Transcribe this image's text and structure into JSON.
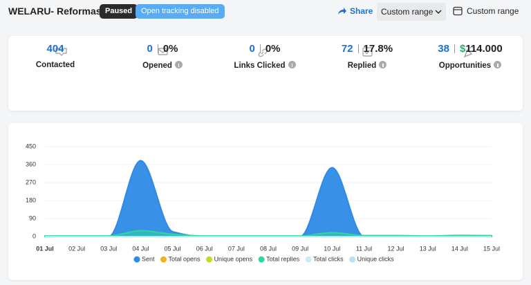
{
  "header": {
    "title": "WELARU- Reformas",
    "status": "Paused",
    "badge": "Open tracking disabled",
    "share": "Share",
    "range_select": "Custom range",
    "range_button": "Custom range"
  },
  "stats": [
    {
      "value": 404,
      "label": "Contacted"
    },
    {
      "value": 0,
      "percent": "0%",
      "label": "Opened"
    },
    {
      "value": 0,
      "percent": "0%",
      "label": "Links Clicked"
    },
    {
      "value": 72,
      "percent": "17.8%",
      "label": "Replied"
    },
    {
      "value": 38,
      "currency": "$",
      "amount": "114.000",
      "label": "Opportunities"
    }
  ],
  "chart_data": {
    "type": "area",
    "categories": [
      "01 Jul",
      "02 Jul",
      "03 Jul",
      "04 Jul",
      "05 Jul",
      "06 Jul",
      "07 Jul",
      "08 Jul",
      "09 Jul",
      "10 Jul",
      "11 Jul",
      "12 Jul",
      "13 Jul",
      "14 Jul",
      "15 Jul"
    ],
    "ylim": [
      0,
      450
    ],
    "yticks": [
      0,
      90,
      180,
      270,
      360,
      450
    ],
    "series": [
      {
        "name": "Sent",
        "color": "#2e8ae6",
        "values": [
          0,
          0,
          0,
          380,
          25,
          0,
          0,
          0,
          0,
          345,
          0,
          0,
          0,
          0,
          0
        ]
      },
      {
        "name": "Total opens",
        "color": "#f2b01e",
        "values": [
          0,
          0,
          0,
          0,
          0,
          0,
          0,
          0,
          0,
          0,
          0,
          0,
          0,
          0,
          0
        ]
      },
      {
        "name": "Unique opens",
        "color": "#b7e021",
        "values": [
          0,
          0,
          0,
          0,
          0,
          0,
          0,
          0,
          0,
          0,
          0,
          0,
          0,
          0,
          0
        ]
      },
      {
        "name": "Total replies",
        "color": "#2fd69c",
        "values": [
          3,
          3,
          3,
          30,
          12,
          3,
          3,
          3,
          3,
          20,
          5,
          5,
          3,
          6,
          5
        ]
      },
      {
        "name": "Total clicks",
        "color": "#cfeaf7",
        "values": [
          0,
          0,
          0,
          0,
          0,
          0,
          0,
          0,
          0,
          0,
          0,
          0,
          0,
          0,
          0
        ]
      },
      {
        "name": "Unique clicks",
        "color": "#b9e3f2",
        "values": [
          0,
          0,
          0,
          0,
          0,
          0,
          0,
          0,
          0,
          0,
          0,
          0,
          0,
          0,
          0
        ]
      }
    ]
  }
}
